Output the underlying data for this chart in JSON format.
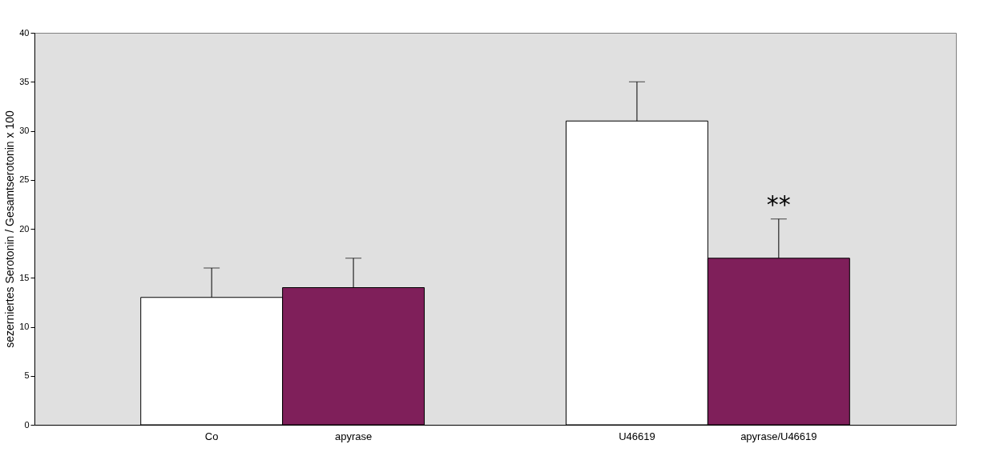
{
  "chart_data": {
    "type": "bar",
    "ylabel": "sezerniertes Serotonin / Gesamtserotonin x 100",
    "categories": [
      "Co",
      "apyrase",
      "U46619",
      "apyrase/U46619"
    ],
    "values": [
      13,
      14,
      31,
      17
    ],
    "colors": [
      "#ffffff",
      "#7f1f5a",
      "#ffffff",
      "#7f1f5a"
    ],
    "errors": [
      [
        13,
        16
      ],
      [
        14,
        17
      ],
      [
        31,
        35
      ],
      [
        17,
        21
      ]
    ],
    "ylim": [
      0,
      40
    ],
    "yticks": [
      0,
      5,
      10,
      15,
      20,
      25,
      30,
      35,
      40
    ],
    "grid": false,
    "annotations": [
      "**"
    ]
  }
}
